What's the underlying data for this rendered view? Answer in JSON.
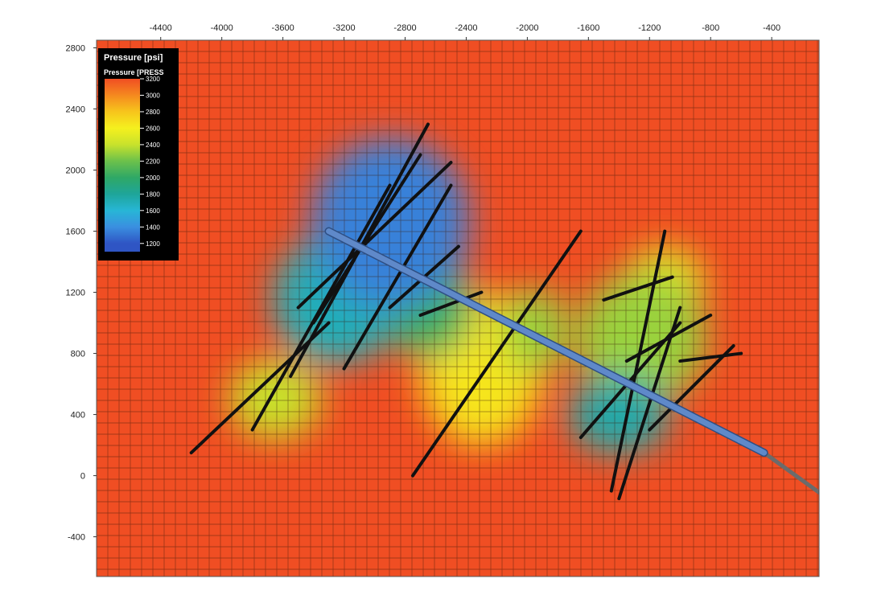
{
  "chart_data": {
    "type": "heatmap",
    "title": "",
    "xlabel": "",
    "ylabel": "",
    "xlim": [
      -4820,
      -90
    ],
    "ylim": [
      -660,
      2850
    ],
    "x_ticks": [
      -4400,
      -4000,
      -3600,
      -3200,
      -2800,
      -2400,
      -2000,
      -1600,
      -1200,
      -800,
      -400
    ],
    "y_ticks": [
      2800,
      2400,
      2000,
      1600,
      1200,
      800,
      400,
      0,
      -400
    ],
    "x_axis_position": "top",
    "grid": true,
    "background_value": 3200,
    "legend": {
      "position": "top-left",
      "title": "Pressure [psi]",
      "subtitle": "Pressure [PRESS",
      "min": 1100,
      "max": 3200,
      "ticks": [
        3200,
        3000,
        2800,
        2600,
        2400,
        2200,
        2000,
        1800,
        1600,
        1400,
        1200
      ],
      "colors": [
        {
          "value": 3200,
          "color": "#f04e23"
        },
        {
          "value": 3000,
          "color": "#f5891f"
        },
        {
          "value": 2800,
          "color": "#f7c51c"
        },
        {
          "value": 2600,
          "color": "#f5f01e"
        },
        {
          "value": 2400,
          "color": "#c8e22c"
        },
        {
          "value": 2200,
          "color": "#6cc14b"
        },
        {
          "value": 2000,
          "color": "#2fa866"
        },
        {
          "value": 1800,
          "color": "#1ea59a"
        },
        {
          "value": 1600,
          "color": "#27b6d6"
        },
        {
          "value": 1400,
          "color": "#3a8fe0"
        },
        {
          "value": 1200,
          "color": "#2f55c4"
        }
      ]
    },
    "depletion_zones": [
      {
        "x": -2900,
        "y": 1650,
        "rx": 520,
        "ry": 560,
        "value": 1350
      },
      {
        "x": -3250,
        "y": 1150,
        "rx": 420,
        "ry": 420,
        "value": 1700
      },
      {
        "x": -3650,
        "y": 500,
        "rx": 300,
        "ry": 260,
        "value": 2400
      },
      {
        "x": -2650,
        "y": 1100,
        "rx": 300,
        "ry": 330,
        "value": 2050
      },
      {
        "x": -1950,
        "y": 950,
        "rx": 220,
        "ry": 280,
        "value": 2300
      },
      {
        "x": -2300,
        "y": 700,
        "rx": 400,
        "ry": 500,
        "value": 2650
      },
      {
        "x": -1250,
        "y": 900,
        "rx": 420,
        "ry": 430,
        "value": 2300
      },
      {
        "x": -1400,
        "y": 400,
        "rx": 330,
        "ry": 260,
        "value": 1750
      },
      {
        "x": -1100,
        "y": 1250,
        "rx": 260,
        "ry": 250,
        "value": 2500
      }
    ],
    "fractures": [
      [
        [
          -4200,
          150
        ],
        [
          -3300,
          1000
        ]
      ],
      [
        [
          -3800,
          300
        ],
        [
          -2900,
          1900
        ]
      ],
      [
        [
          -3550,
          650
        ],
        [
          -2650,
          2300
        ]
      ],
      [
        [
          -3200,
          700
        ],
        [
          -2500,
          1900
        ]
      ],
      [
        [
          -3400,
          1000
        ],
        [
          -2700,
          2100
        ]
      ],
      [
        [
          -3500,
          1100
        ],
        [
          -2500,
          2050
        ]
      ],
      [
        [
          -2750,
          0
        ],
        [
          -1650,
          1600
        ]
      ],
      [
        [
          -2900,
          1100
        ],
        [
          -2450,
          1500
        ]
      ],
      [
        [
          -2700,
          1050
        ],
        [
          -2300,
          1200
        ]
      ],
      [
        [
          -1400,
          -150
        ],
        [
          -1000,
          1100
        ]
      ],
      [
        [
          -1450,
          -100
        ],
        [
          -1100,
          1600
        ]
      ],
      [
        [
          -1650,
          250
        ],
        [
          -1000,
          1000
        ]
      ],
      [
        [
          -1200,
          300
        ],
        [
          -650,
          850
        ]
      ],
      [
        [
          -1350,
          750
        ],
        [
          -800,
          1050
        ]
      ],
      [
        [
          -1500,
          1150
        ],
        [
          -1050,
          1300
        ]
      ],
      [
        [
          -1000,
          750
        ],
        [
          -600,
          800
        ]
      ]
    ],
    "wellbore": [
      [
        -3300,
        1600
      ],
      [
        -450,
        150
      ]
    ],
    "wellbore_extension": [
      [
        -450,
        150
      ],
      [
        -90,
        -110
      ]
    ]
  }
}
